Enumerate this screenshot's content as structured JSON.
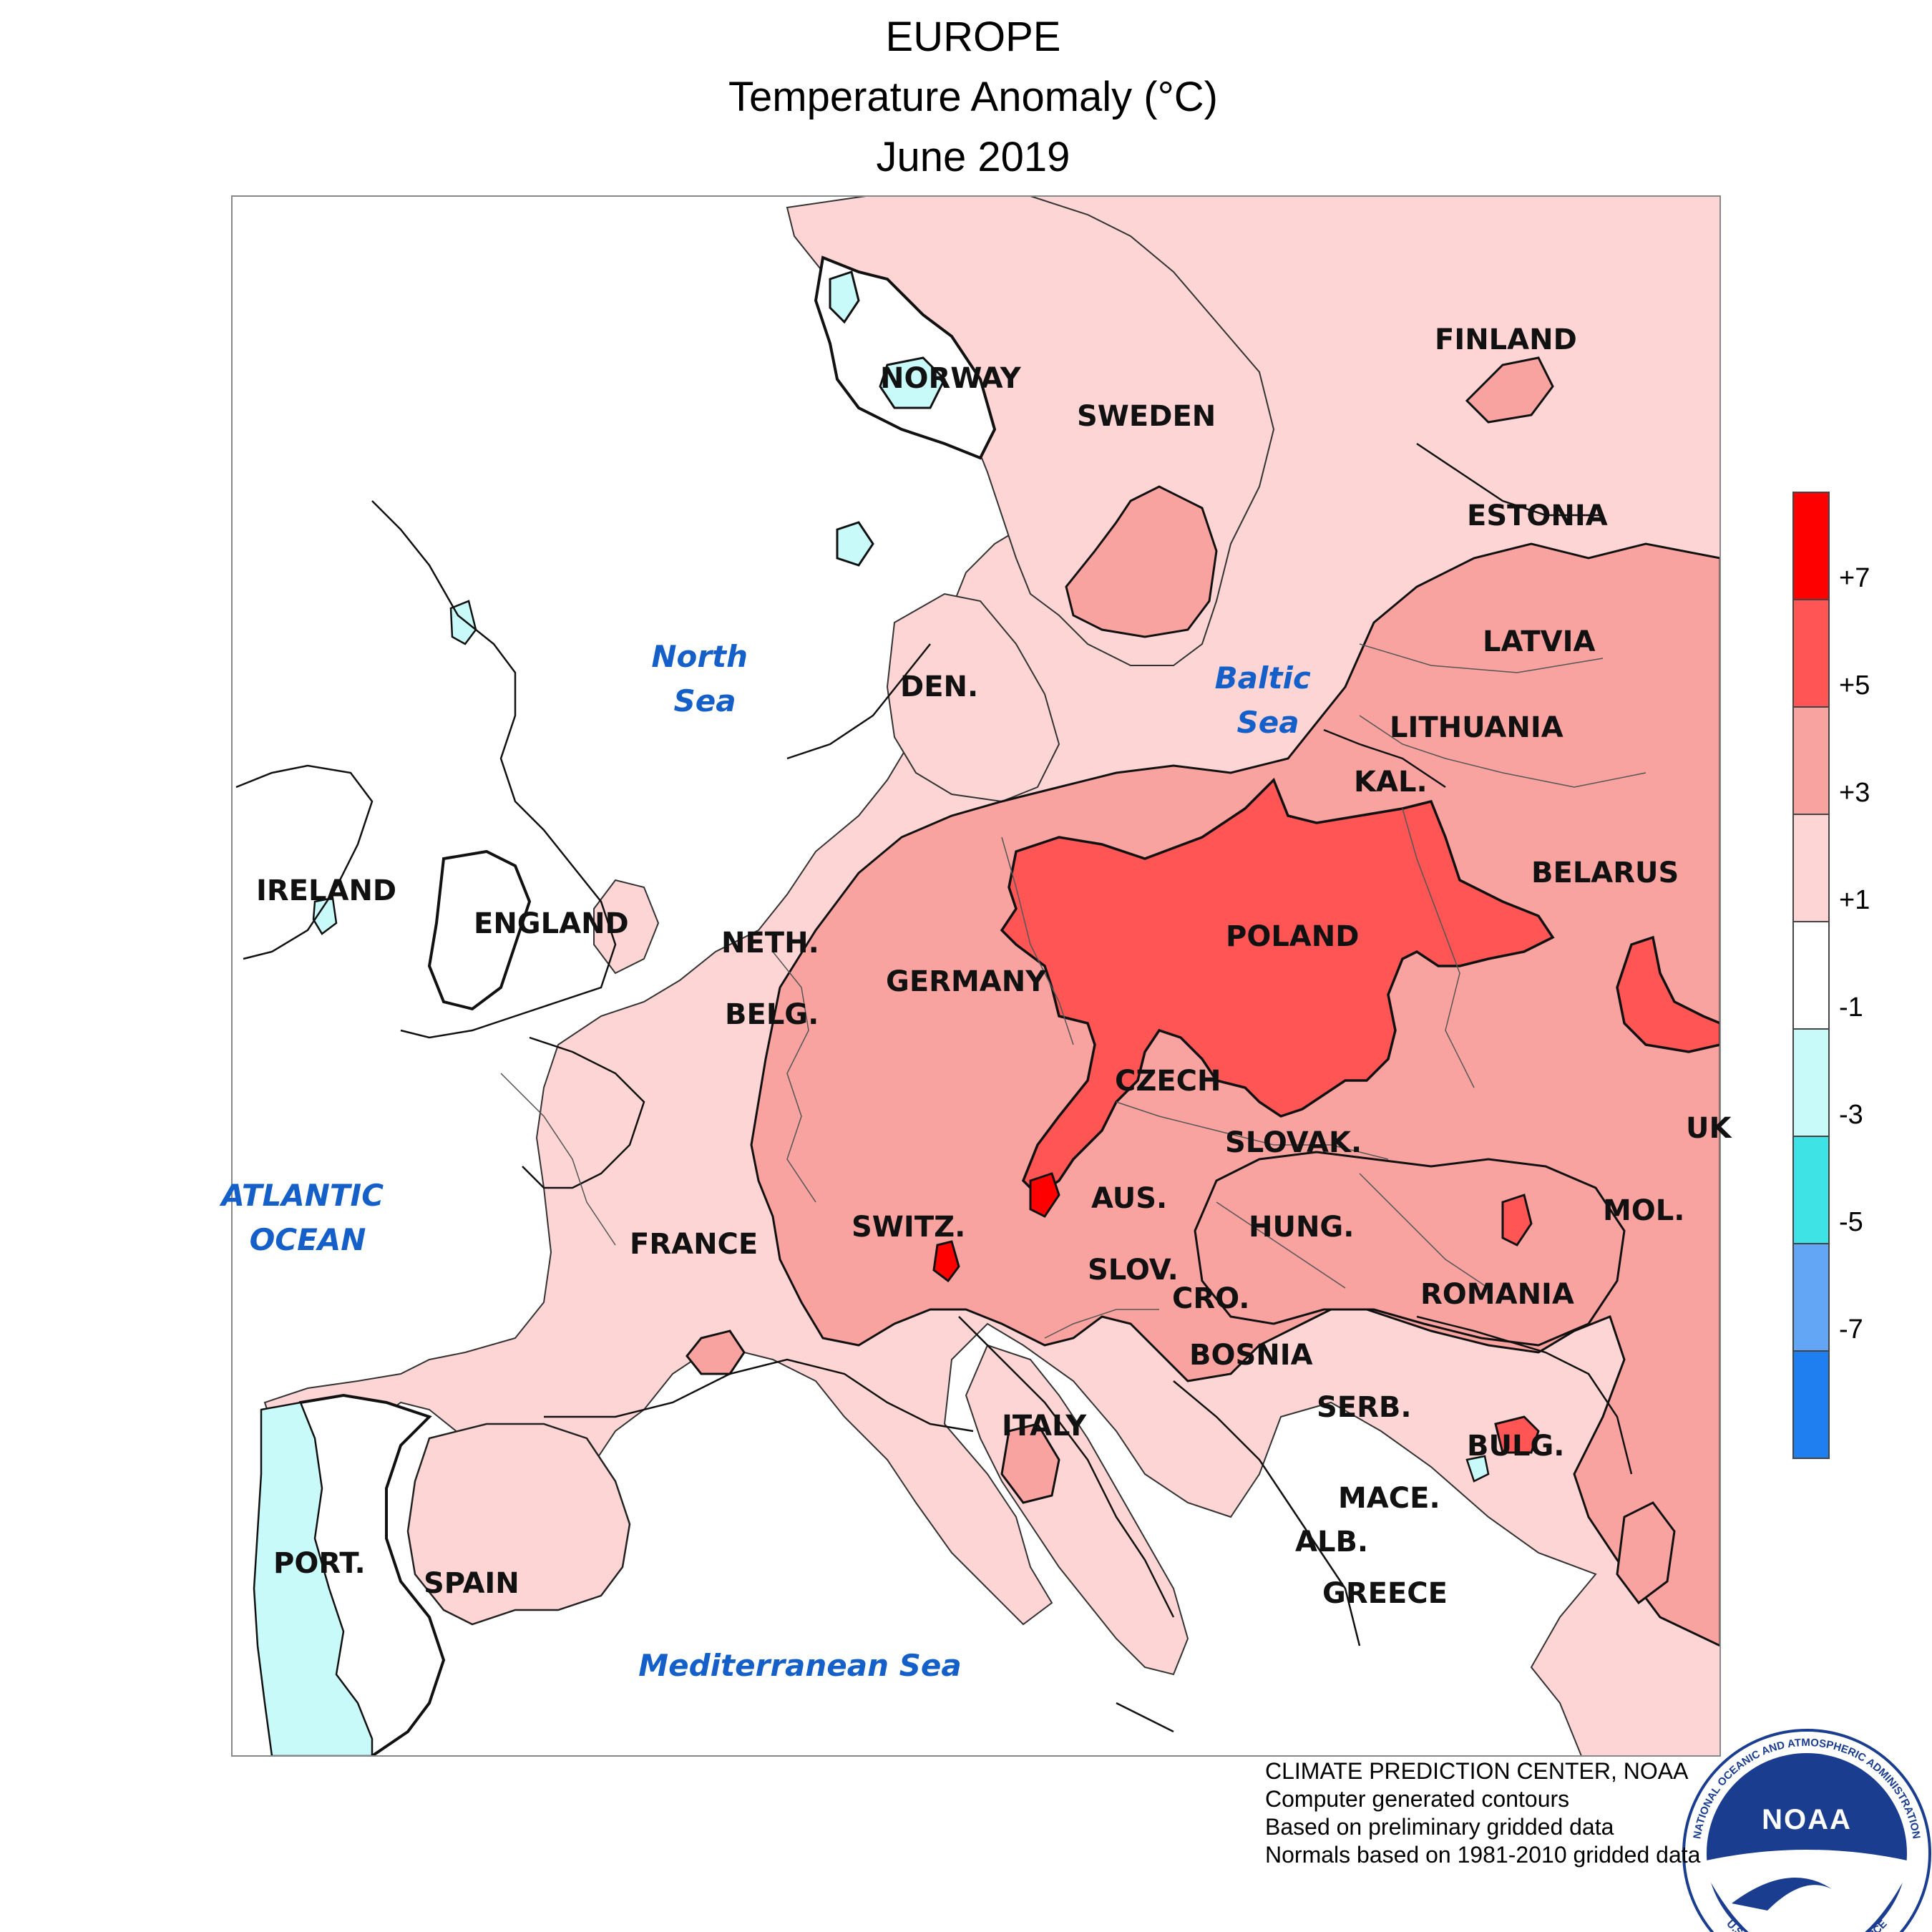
{
  "header": {
    "region": "EUROPE",
    "variable": "Temperature Anomaly (°C)",
    "period": "June 2019"
  },
  "map_labels": {
    "countries": [
      "NORWAY",
      "SWEDEN",
      "FINLAND",
      "ESTONIA",
      "LATVIA",
      "LITHUANIA",
      "KAL.",
      "BELARUS",
      "POLAND",
      "DEN.",
      "NETH.",
      "BELG.",
      "GERMANY",
      "CZECH",
      "SLOVAK.",
      "UK",
      "MOL.",
      "AUS.",
      "HUNG.",
      "ROMANIA",
      "SWITZ.",
      "FRANCE",
      "SLOV.",
      "CRO.",
      "BOSNIA",
      "SERB.",
      "BULG.",
      "MACE.",
      "ALB.",
      "GREECE",
      "ITALY",
      "SPAIN",
      "PORT.",
      "IRELAND",
      "ENGLAND"
    ],
    "seas": [
      "North Sea",
      "Baltic Sea",
      "ATLANTIC OCEAN",
      "Mediterranean Sea"
    ]
  },
  "legend": {
    "ticks": [
      "+7",
      "+5",
      "+3",
      "+1",
      "-1",
      "-3",
      "-5",
      "-7"
    ],
    "colors": [
      "#ff0000",
      "#ff5555",
      "#f9a3a0",
      "#fcd5d4",
      "#ffffff",
      "#c9fafa",
      "#3ee3e6",
      "#63a6f5",
      "#1f7ff0"
    ],
    "bins_celsius": [
      ">7",
      "5 to 7",
      "3 to 5",
      "1 to 3",
      "-1 to 1",
      "-3 to -1",
      "-5 to -3",
      "-7 to -5",
      "<-7"
    ]
  },
  "credits": [
    "CLIMATE PREDICTION CENTER, NOAA",
    "Computer generated contours",
    "Based on preliminary gridded data",
    "Normals based on 1981-2010 gridded data"
  ],
  "logo": {
    "text": "NOAA",
    "ring_top": "NATIONAL OCEANIC AND ATMOSPHERIC ADMINISTRATION",
    "ring_bottom": "U.S. DEPARTMENT OF COMMERCE"
  }
}
